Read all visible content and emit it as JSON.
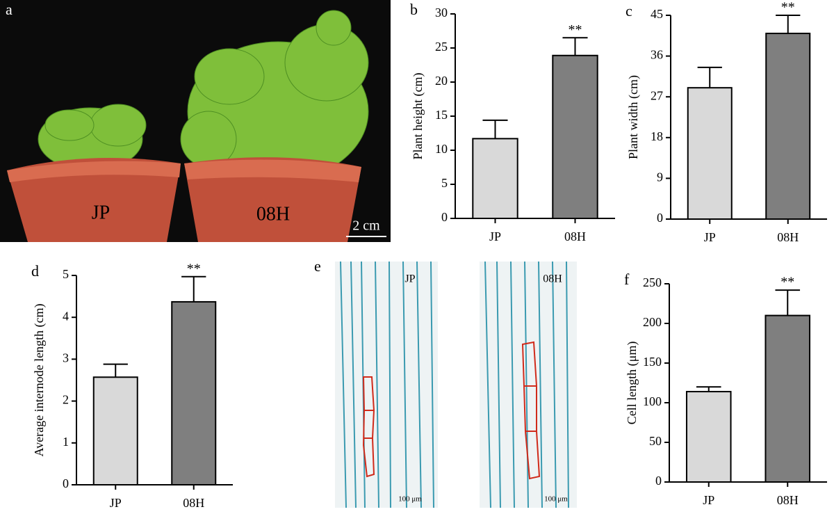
{
  "photo": {
    "label": "a",
    "left": "JP",
    "right": "08H",
    "scale": "2 cm"
  },
  "micrograph": {
    "label": "e",
    "left": "JP",
    "right": "08H",
    "scale_left": "100 μm",
    "scale_right": "100 μm"
  },
  "chart_data": [
    {
      "type": "bar",
      "panel": "b",
      "ylabel": "Plant height (cm)",
      "categories": [
        "JP",
        "08H"
      ],
      "values": [
        11.7,
        23.9
      ],
      "errors": [
        2.7,
        2.6
      ],
      "significance": [
        null,
        "**"
      ],
      "colors": [
        "#d9d9d9",
        "#7f7f7f"
      ],
      "ylim": [
        0,
        30
      ],
      "yticks": [
        0,
        5,
        10,
        15,
        20,
        25,
        30
      ]
    },
    {
      "type": "bar",
      "panel": "c",
      "ylabel": "Plant width (cm)",
      "categories": [
        "JP",
        "08H"
      ],
      "values": [
        29,
        41
      ],
      "errors": [
        4.5,
        4
      ],
      "significance": [
        null,
        "**"
      ],
      "colors": [
        "#d9d9d9",
        "#7f7f7f"
      ],
      "ylim": [
        0,
        45
      ],
      "yticks": [
        0,
        9,
        18,
        27,
        36,
        45
      ]
    },
    {
      "type": "bar",
      "panel": "d",
      "ylabel": "Average internode length (cm)",
      "categories": [
        "JP",
        "08H"
      ],
      "values": [
        2.57,
        4.37
      ],
      "errors": [
        0.31,
        0.6
      ],
      "significance": [
        null,
        "**"
      ],
      "colors": [
        "#d9d9d9",
        "#7f7f7f"
      ],
      "ylim": [
        0,
        5
      ],
      "yticks": [
        0,
        1,
        2,
        3,
        4,
        5
      ]
    },
    {
      "type": "bar",
      "panel": "f",
      "ylabel": "Cell length (μm)",
      "categories": [
        "JP",
        "08H"
      ],
      "values": [
        114,
        210
      ],
      "errors": [
        6,
        32
      ],
      "significance": [
        null,
        "**"
      ],
      "colors": [
        "#d9d9d9",
        "#7f7f7f"
      ],
      "ylim": [
        0,
        250
      ],
      "yticks": [
        0,
        50,
        100,
        150,
        200,
        250
      ]
    }
  ]
}
